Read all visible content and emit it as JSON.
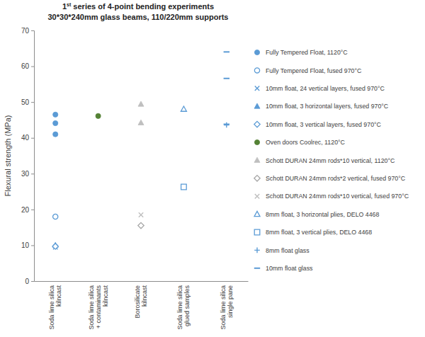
{
  "chart_data": {
    "type": "scatter",
    "title": "1st series of 4-point bending experiments",
    "subtitle": "30*30*240mm glass beams, 110/220mm supports",
    "y_label": "Flexural strength (MPa)",
    "categories": [
      "Soda lime silica kilncast",
      "Soda lime silica + contaminants kilncast",
      "Borosilicate kilncast",
      "Soda lime silica glued samples",
      "Soda lime silica single pane"
    ],
    "ylim": [
      0,
      70
    ],
    "yticks": [
      0,
      10,
      20,
      30,
      40,
      50,
      60,
      70
    ],
    "grid": false,
    "legend": "right",
    "series": [
      {
        "name": "Fully Tempered Float, 1120°C",
        "color": "#5b9bd5",
        "marker": "circle",
        "x": [
          "Soda lime silica kilncast",
          "Soda lime silica kilncast",
          "Soda lime silica kilncast"
        ],
        "values": [
          46.5,
          44.1,
          41.0
        ]
      },
      {
        "name": "Fully Tempered Float, fused 970°C",
        "color": "#5b9bd5",
        "marker": "circle-open",
        "x": [
          "Soda lime silica kilncast"
        ],
        "values": [
          18.0
        ]
      },
      {
        "name": "10mm float, 24 vertical layers, fused 970°C",
        "color": "#5b9bd5",
        "marker": "x",
        "x": [
          "Soda lime silica kilncast"
        ],
        "values": [
          9.5
        ]
      },
      {
        "name": "10mm float, 3 horizontal layers, fused 970°C",
        "color": "#5b9bd5",
        "marker": "triangle",
        "x": [
          "Soda lime silica kilncast"
        ],
        "values": [
          10.0
        ]
      },
      {
        "name": "10mm float, 3 vertical layers, fused 970°C",
        "color": "#5b9bd5",
        "marker": "diamond-open",
        "x": [
          "Soda lime silica kilncast"
        ],
        "values": [
          9.7
        ]
      },
      {
        "name": "Oven doors Coolrec, 1120°C",
        "color": "#548235",
        "marker": "circle",
        "x": [
          "Soda lime silica + contaminants kilncast"
        ],
        "values": [
          46.1
        ]
      },
      {
        "name": "Schott DURAN 24mm rods*10 vertical, 1120°C",
        "color": "#bfbfbf",
        "marker": "triangle",
        "x": [
          "Borosilicate kilncast",
          "Borosilicate kilncast"
        ],
        "values": [
          49.4,
          44.2
        ]
      },
      {
        "name": "Schott DURAN 24mm rods*2 vertical, fused 970°C",
        "color": "#a5a5a5",
        "marker": "diamond-open",
        "x": [
          "Borosilicate kilncast"
        ],
        "values": [
          15.5
        ]
      },
      {
        "name": "Schott DURAN 24mm rods*10 vertical, fused 970°C",
        "color": "#bfbfbf",
        "marker": "x",
        "x": [
          "Borosilicate kilncast"
        ],
        "values": [
          18.5
        ]
      },
      {
        "name": "8mm float, 3 horizontal plies, DELO 4468",
        "color": "#5b9bd5",
        "marker": "triangle-open",
        "x": [
          "Soda lime silica glued samples"
        ],
        "values": [
          48.0
        ]
      },
      {
        "name": "8mm float, 3 vertical plies, DELO 4468",
        "color": "#5b9bd5",
        "marker": "square-open",
        "x": [
          "Soda lime silica glued samples"
        ],
        "values": [
          26.3
        ]
      },
      {
        "name": "8mm float glass",
        "color": "#5b9bd5",
        "marker": "plus",
        "x": [
          "Soda lime silica single pane"
        ],
        "values": [
          43.6
        ]
      },
      {
        "name": "10mm float glass",
        "color": "#5b9bd5",
        "marker": "dash",
        "x": [
          "Soda lime silica single pane",
          "Soda lime silica single pane",
          "Soda lime silica single pane"
        ],
        "values": [
          64.0,
          56.6,
          43.8
        ]
      }
    ]
  }
}
